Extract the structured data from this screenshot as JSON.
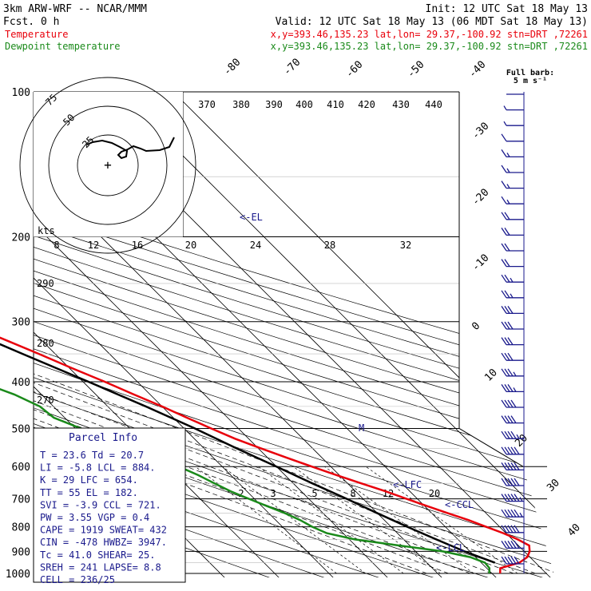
{
  "header": {
    "model": "3km ARW-WRF -- NCAR/MMM",
    "init": "Init: 12 UTC Sat 18 May 13",
    "fcst": "Fcst.     0 h",
    "valid": "Valid: 12 UTC Sat 18 May 13 (06 MDT Sat 18 May 13)",
    "lines": [
      {
        "name": "Temperature",
        "info": "x,y=393.46,135.23   lat,lon= 29.37,-100.92  stn=DRT ,72261",
        "color": "#e8000b"
      },
      {
        "name": "Dewpoint temperature",
        "info": "x,y=393.46,135.23   lat,lon= 29.37,-100.92  stn=DRT ,72261",
        "color": "#1a8a1a"
      }
    ]
  },
  "barb_legend": {
    "line1": "Full barb:",
    "line2": "5 m s⁻¹"
  },
  "colors": {
    "temperature": "#e8000b",
    "dewpoint": "#1a8a1a",
    "isobar": "#000000",
    "annot": "#1a1a8c"
  },
  "chart_data": {
    "type": "skew-t log-p",
    "pressure_levels": [
      "100",
      "200",
      "300",
      "400",
      "500",
      "600",
      "700",
      "800",
      "900",
      "1000"
    ],
    "isotherm_labels": [
      "-80",
      "-70",
      "-60",
      "-50",
      "-40",
      "-30",
      "-20",
      "-10",
      "0",
      "10",
      "20",
      "30",
      "40"
    ],
    "theta_labels": [
      "370",
      "380",
      "390",
      "400",
      "410",
      "420",
      "430",
      "440"
    ],
    "theta_low_labels": [
      "290",
      "280",
      "270"
    ],
    "mixing_ratio_labels": [
      "2",
      "3",
      "5",
      "8",
      "12",
      "20"
    ],
    "temperature": {
      "pressure": [
        1000,
        975,
        950,
        925,
        900,
        875,
        850,
        825,
        800,
        775,
        750,
        725,
        700,
        675,
        650,
        625,
        600,
        575,
        550,
        525,
        500,
        475,
        450,
        425,
        400,
        375,
        350,
        325,
        300,
        275,
        250,
        225,
        200,
        175,
        150,
        125,
        100
      ],
      "values": [
        21.5,
        22.5,
        27,
        29.5,
        31,
        32,
        31,
        29.5,
        27.5,
        25.5,
        23,
        20.5,
        18,
        15.5,
        12.5,
        9.5,
        6.5,
        3.5,
        0.5,
        -2.5,
        -5,
        -7.5,
        -10,
        -13,
        -16,
        -19.5,
        -23,
        -27,
        -31.5,
        -37,
        -43,
        -50,
        -56,
        -59,
        -59,
        -58,
        -56
      ]
    },
    "dewpoint": {
      "pressure": [
        1000,
        975,
        950,
        925,
        900,
        875,
        850,
        825,
        800,
        775,
        750,
        725,
        700,
        675,
        650,
        625,
        600,
        575,
        550,
        525,
        500,
        475,
        450,
        425,
        400,
        375,
        350,
        325,
        300,
        275,
        250,
        225,
        200,
        175,
        150,
        125,
        100
      ],
      "values": [
        19.5,
        20.5,
        20.7,
        19,
        15,
        8,
        1,
        -3,
        -4.5,
        -5.5,
        -7,
        -9,
        -11,
        -13,
        -14.5,
        -16,
        -18,
        -20.5,
        -23,
        -25.5,
        -29,
        -32,
        -32.5,
        -35,
        -39,
        -44,
        -49,
        -53,
        -57,
        -62,
        -67,
        -71,
        -74,
        -74,
        -74,
        -73,
        -72
      ]
    },
    "parcel": {
      "pressure": [
        950,
        900,
        850,
        800,
        750,
        700,
        650,
        600,
        550,
        500,
        450,
        400,
        350,
        300,
        250,
        200,
        182
      ],
      "values": [
        22.5,
        19,
        16,
        13,
        10,
        7,
        3.5,
        0,
        -4,
        -8,
        -13,
        -19,
        -26,
        -34,
        -43,
        -53,
        -57
      ]
    },
    "annotations": [
      "<-EL",
      "<-LFC",
      "<-CCL",
      "<-LCL",
      "M"
    ],
    "hodograph": {
      "ring_labels": [
        "75",
        "50",
        "25"
      ],
      "units_label": "kts",
      "speed_labels": [
        "8",
        "12",
        "16",
        "20",
        "24",
        "28",
        "32"
      ]
    },
    "wind_speed_ms": [
      2,
      3,
      4,
      6,
      8,
      9,
      9,
      9,
      10,
      11,
      12,
      12,
      13,
      14,
      15,
      15,
      16,
      17,
      18,
      19,
      20,
      22,
      24,
      25,
      26,
      27,
      28,
      29,
      30,
      31,
      32
    ]
  },
  "parcel_info": {
    "title": "Parcel Info",
    "rows": [
      "T  =   23.6  Td =  20.7",
      "LI =   -5.8  LCL =  884.",
      "K  =     29  LFC =  654.",
      "TT =     55  EL  =  182.",
      "SVI =  -3.9  CCL =  721.",
      "PW =   3.55  VGP =   0.4",
      "CAPE =  1919  SWEAT=  432",
      "CIN  =  -478  HWBZ= 3947.",
      "Tc  =  41.0  SHEAR=  25.",
      "SREH =   241  LAPSE=  8.8",
      "CELL = 236/25"
    ]
  }
}
